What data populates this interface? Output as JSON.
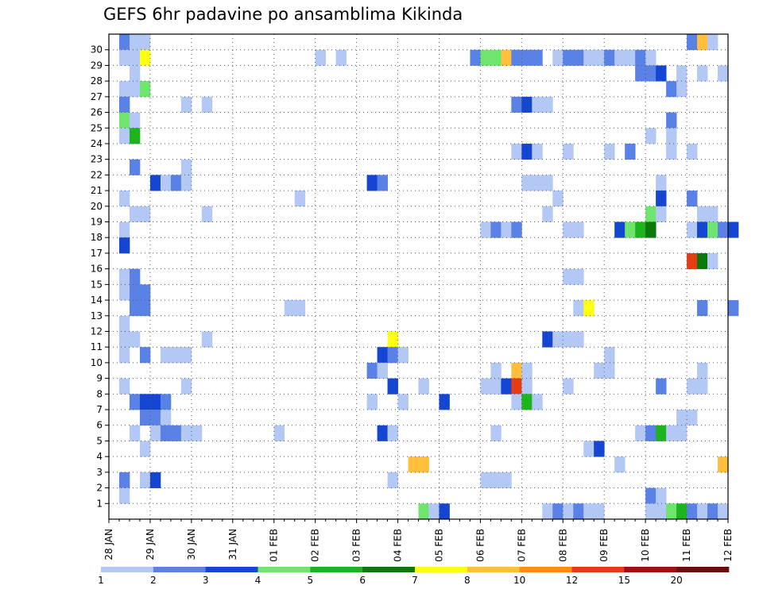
{
  "chart_data": {
    "type": "heatmap",
    "title": "GEFS 6hr padavine po ansamblima Kikinda",
    "xlabel": "",
    "ylabel": "",
    "y_ticks": [
      "1",
      "2",
      "3",
      "4",
      "5",
      "6",
      "7",
      "8",
      "9",
      "10",
      "11",
      "12",
      "13",
      "14",
      "15",
      "16",
      "17",
      "18",
      "19",
      "20",
      "21",
      "22",
      "23",
      "24",
      "25",
      "26",
      "27",
      "28",
      "29",
      "30"
    ],
    "x_ticks": [
      "28 JAN",
      "29 JAN",
      "30 JAN",
      "31 JAN",
      "01 FEB",
      "02 FEB",
      "03 FEB",
      "04 FEB",
      "05 FEB",
      "06 FEB",
      "07 FEB",
      "08 FEB",
      "09 FEB",
      "10 FEB",
      "11 FEB",
      "12 FEB"
    ],
    "time_steps": 60,
    "legend": {
      "colors": [
        "#b4c8f5",
        "#5a82e6",
        "#1446d2",
        "#6ee66e",
        "#1eb41e",
        "#0a780a",
        "#ffff14",
        "#ffbe3c",
        "#ff8c14",
        "#e63c14",
        "#a00f0f",
        "#6e0a0a"
      ],
      "labels": [
        "1",
        "2",
        "3",
        "4",
        "5",
        "6",
        "7",
        "8",
        "10",
        "12",
        "15",
        "20"
      ]
    },
    "cells": [
      [
        1,
        30,
        2
      ],
      [
        2,
        30,
        1
      ],
      [
        3,
        30,
        1
      ],
      [
        56,
        30,
        2
      ],
      [
        57,
        30,
        8
      ],
      [
        58,
        30,
        1
      ],
      [
        1,
        29,
        1
      ],
      [
        2,
        29,
        1
      ],
      [
        3,
        29,
        7
      ],
      [
        20,
        29,
        1
      ],
      [
        22,
        29,
        1
      ],
      [
        35,
        29,
        2
      ],
      [
        36,
        29,
        4
      ],
      [
        37,
        29,
        4
      ],
      [
        38,
        29,
        8
      ],
      [
        39,
        29,
        2
      ],
      [
        40,
        29,
        2
      ],
      [
        41,
        29,
        2
      ],
      [
        43,
        29,
        1
      ],
      [
        44,
        29,
        2
      ],
      [
        45,
        29,
        2
      ],
      [
        46,
        29,
        1
      ],
      [
        47,
        29,
        1
      ],
      [
        48,
        29,
        2
      ],
      [
        49,
        29,
        1
      ],
      [
        50,
        29,
        1
      ],
      [
        51,
        29,
        2
      ],
      [
        52,
        29,
        1
      ],
      [
        2,
        28,
        1
      ],
      [
        51,
        28,
        2
      ],
      [
        52,
        28,
        2
      ],
      [
        53,
        28,
        3
      ],
      [
        55,
        28,
        1
      ],
      [
        57,
        28,
        1
      ],
      [
        59,
        28,
        1
      ],
      [
        1,
        27,
        1
      ],
      [
        2,
        27,
        1
      ],
      [
        3,
        27,
        4
      ],
      [
        54,
        27,
        2
      ],
      [
        55,
        27,
        1
      ],
      [
        1,
        26,
        2
      ],
      [
        7,
        26,
        1
      ],
      [
        9,
        26,
        1
      ],
      [
        39,
        26,
        2
      ],
      [
        40,
        26,
        3
      ],
      [
        41,
        26,
        1
      ],
      [
        42,
        26,
        1
      ],
      [
        1,
        25,
        4
      ],
      [
        2,
        25,
        1
      ],
      [
        54,
        25,
        2
      ],
      [
        1,
        24,
        1
      ],
      [
        2,
        24,
        5
      ],
      [
        52,
        24,
        1
      ],
      [
        54,
        24,
        1
      ],
      [
        39,
        23,
        1
      ],
      [
        40,
        23,
        3
      ],
      [
        41,
        23,
        1
      ],
      [
        44,
        23,
        1
      ],
      [
        48,
        23,
        1
      ],
      [
        50,
        23,
        2
      ],
      [
        54,
        23,
        1
      ],
      [
        56,
        23,
        1
      ],
      [
        2,
        22,
        2
      ],
      [
        7,
        22,
        1
      ],
      [
        4,
        21,
        3
      ],
      [
        5,
        21,
        1
      ],
      [
        6,
        21,
        2
      ],
      [
        7,
        21,
        1
      ],
      [
        25,
        21,
        3
      ],
      [
        26,
        21,
        2
      ],
      [
        40,
        21,
        1
      ],
      [
        41,
        21,
        1
      ],
      [
        42,
        21,
        1
      ],
      [
        53,
        21,
        1
      ],
      [
        1,
        20,
        1
      ],
      [
        18,
        20,
        1
      ],
      [
        43,
        20,
        1
      ],
      [
        53,
        20,
        3
      ],
      [
        56,
        20,
        2
      ],
      [
        2,
        19,
        1
      ],
      [
        3,
        19,
        1
      ],
      [
        9,
        19,
        1
      ],
      [
        42,
        19,
        1
      ],
      [
        52,
        19,
        4
      ],
      [
        53,
        19,
        1
      ],
      [
        57,
        19,
        1
      ],
      [
        58,
        19,
        1
      ],
      [
        1,
        18,
        1
      ],
      [
        36,
        18,
        1
      ],
      [
        37,
        18,
        2
      ],
      [
        38,
        18,
        1
      ],
      [
        39,
        18,
        2
      ],
      [
        44,
        18,
        1
      ],
      [
        45,
        18,
        1
      ],
      [
        49,
        18,
        3
      ],
      [
        50,
        18,
        4
      ],
      [
        51,
        18,
        5
      ],
      [
        52,
        18,
        6
      ],
      [
        56,
        18,
        1
      ],
      [
        57,
        18,
        3
      ],
      [
        58,
        18,
        4
      ],
      [
        59,
        18,
        2
      ],
      [
        60,
        18,
        3
      ],
      [
        1,
        17,
        3
      ],
      [
        56,
        16,
        10
      ],
      [
        57,
        16,
        6
      ],
      [
        58,
        16,
        1
      ],
      [
        1,
        15,
        1
      ],
      [
        2,
        15,
        2
      ],
      [
        44,
        15,
        1
      ],
      [
        45,
        15,
        1
      ],
      [
        1,
        14,
        1
      ],
      [
        2,
        14,
        2
      ],
      [
        3,
        14,
        2
      ],
      [
        2,
        13,
        2
      ],
      [
        3,
        13,
        2
      ],
      [
        17,
        13,
        1
      ],
      [
        18,
        13,
        1
      ],
      [
        45,
        13,
        1
      ],
      [
        46,
        13,
        7
      ],
      [
        57,
        13,
        2
      ],
      [
        60,
        13,
        2
      ],
      [
        1,
        12,
        1
      ],
      [
        1,
        11,
        1
      ],
      [
        2,
        11,
        1
      ],
      [
        9,
        11,
        1
      ],
      [
        27,
        11,
        7
      ],
      [
        42,
        11,
        3
      ],
      [
        43,
        11,
        1
      ],
      [
        44,
        11,
        1
      ],
      [
        45,
        11,
        1
      ],
      [
        1,
        10,
        1
      ],
      [
        3,
        10,
        2
      ],
      [
        5,
        10,
        1
      ],
      [
        6,
        10,
        1
      ],
      [
        7,
        10,
        1
      ],
      [
        26,
        10,
        3
      ],
      [
        27,
        10,
        2
      ],
      [
        28,
        10,
        1
      ],
      [
        48,
        10,
        1
      ],
      [
        25,
        9,
        2
      ],
      [
        26,
        9,
        1
      ],
      [
        37,
        9,
        1
      ],
      [
        39,
        9,
        8
      ],
      [
        40,
        9,
        1
      ],
      [
        47,
        9,
        1
      ],
      [
        48,
        9,
        1
      ],
      [
        57,
        9,
        1
      ],
      [
        1,
        8,
        1
      ],
      [
        7,
        8,
        1
      ],
      [
        27,
        8,
        3
      ],
      [
        30,
        8,
        1
      ],
      [
        36,
        8,
        1
      ],
      [
        37,
        8,
        1
      ],
      [
        38,
        8,
        3
      ],
      [
        39,
        8,
        10
      ],
      [
        40,
        8,
        1
      ],
      [
        44,
        8,
        1
      ],
      [
        53,
        8,
        2
      ],
      [
        56,
        8,
        1
      ],
      [
        57,
        8,
        1
      ],
      [
        2,
        7,
        2
      ],
      [
        3,
        7,
        3
      ],
      [
        4,
        7,
        3
      ],
      [
        5,
        7,
        2
      ],
      [
        25,
        7,
        1
      ],
      [
        28,
        7,
        1
      ],
      [
        32,
        7,
        3
      ],
      [
        39,
        7,
        1
      ],
      [
        40,
        7,
        5
      ],
      [
        41,
        7,
        1
      ],
      [
        3,
        6,
        2
      ],
      [
        4,
        6,
        2
      ],
      [
        5,
        6,
        1
      ],
      [
        55,
        6,
        1
      ],
      [
        56,
        6,
        1
      ],
      [
        2,
        5,
        1
      ],
      [
        4,
        5,
        1
      ],
      [
        5,
        5,
        2
      ],
      [
        6,
        5,
        2
      ],
      [
        7,
        5,
        1
      ],
      [
        8,
        5,
        1
      ],
      [
        16,
        5,
        1
      ],
      [
        26,
        5,
        3
      ],
      [
        27,
        5,
        1
      ],
      [
        37,
        5,
        1
      ],
      [
        51,
        5,
        1
      ],
      [
        52,
        5,
        2
      ],
      [
        53,
        5,
        5
      ],
      [
        54,
        5,
        1
      ],
      [
        55,
        5,
        1
      ],
      [
        3,
        4,
        1
      ],
      [
        46,
        4,
        1
      ],
      [
        47,
        4,
        3
      ],
      [
        29,
        3,
        8
      ],
      [
        30,
        3,
        8
      ],
      [
        49,
        3,
        1
      ],
      [
        59,
        3,
        8
      ],
      [
        1,
        2,
        2
      ],
      [
        3,
        2,
        1
      ],
      [
        4,
        2,
        3
      ],
      [
        27,
        2,
        1
      ],
      [
        36,
        2,
        1
      ],
      [
        37,
        2,
        1
      ],
      [
        38,
        2,
        1
      ],
      [
        1,
        1,
        1
      ],
      [
        52,
        1,
        2
      ],
      [
        53,
        1,
        1
      ],
      [
        30,
        0,
        4
      ],
      [
        31,
        0,
        1
      ],
      [
        32,
        0,
        3
      ],
      [
        42,
        0,
        1
      ],
      [
        43,
        0,
        2
      ],
      [
        44,
        0,
        1
      ],
      [
        45,
        0,
        2
      ],
      [
        46,
        0,
        1
      ],
      [
        47,
        0,
        1
      ],
      [
        52,
        0,
        1
      ],
      [
        53,
        0,
        1
      ],
      [
        54,
        0,
        4
      ],
      [
        55,
        0,
        5
      ],
      [
        56,
        0,
        2
      ],
      [
        57,
        0,
        1
      ],
      [
        58,
        0,
        2
      ],
      [
        59,
        0,
        1
      ]
    ]
  }
}
